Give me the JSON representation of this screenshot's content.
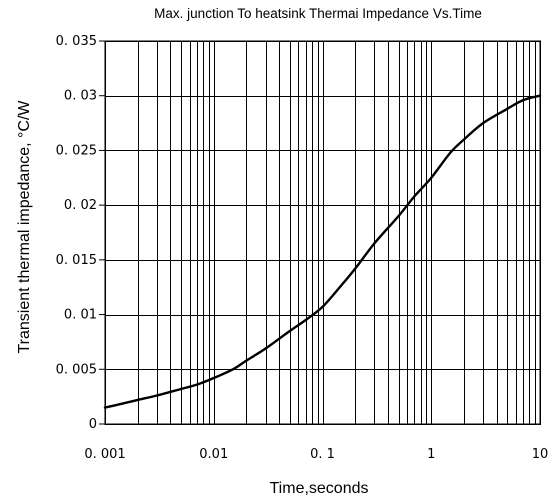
{
  "chart_data": {
    "type": "line",
    "title": "Max. junction To heatsink Thermai Impedance Vs.Time",
    "xlabel": "Time,seconds",
    "ylabel": "Transient thermal impedance, °C/W",
    "x_scale": "log",
    "xlim": [
      0.001,
      10
    ],
    "ylim": [
      0,
      0.035
    ],
    "grid": true,
    "x_tick_labels": [
      "0. 001",
      "0.01",
      "0. 1",
      "1",
      "10"
    ],
    "y_tick_labels": [
      "0",
      "0. 005",
      "0. 01",
      "0. 015",
      "0. 02",
      "0. 025",
      "0. 03",
      "0. 035"
    ],
    "series": [
      {
        "x": [
          0.001,
          0.0015,
          0.002,
          0.003,
          0.005,
          0.007,
          0.01,
          0.015,
          0.02,
          0.03,
          0.05,
          0.07,
          0.1,
          0.15,
          0.2,
          0.3,
          0.5,
          0.7,
          1,
          1.5,
          2,
          3,
          5,
          7,
          10
        ],
        "values": [
          0.0015,
          0.0019,
          0.0022,
          0.0026,
          0.0032,
          0.0036,
          0.0042,
          0.005,
          0.0058,
          0.0069,
          0.0085,
          0.0095,
          0.0107,
          0.0127,
          0.0142,
          0.0165,
          0.019,
          0.0208,
          0.0225,
          0.0248,
          0.026,
          0.0275,
          0.0288,
          0.0296,
          0.03
        ]
      }
    ]
  }
}
